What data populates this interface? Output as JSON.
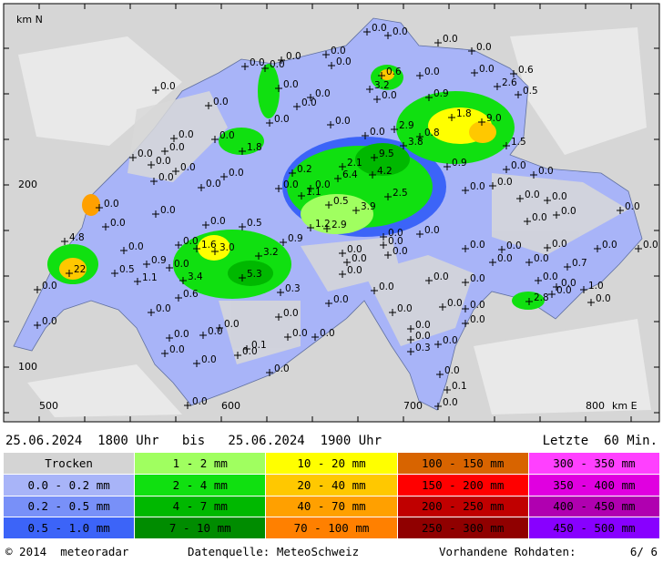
{
  "map": {
    "axis": {
      "y_title": "km N",
      "x_title": "km E",
      "y_labels": [
        "200",
        "100"
      ],
      "x_labels": [
        "500",
        "600",
        "700",
        "800"
      ]
    },
    "stations": [
      "0.0",
      "0.0",
      "0.0",
      "0.0",
      "0.0",
      "0.0",
      "0.0",
      "0.0",
      "0.0",
      "0.6",
      "0.0",
      "0.6",
      "0.0",
      "3.2",
      "2.6",
      "0.5",
      "0.0",
      "0.0",
      "0.0",
      "0.0",
      "0.9",
      "0.0",
      "0.0",
      "1.8",
      "9.0",
      "0.0",
      "0.0",
      "2.9",
      "0.8",
      "0.0",
      "0.0",
      "1.8",
      "0.0",
      "3.8",
      "1.5",
      "0.0",
      "9.5",
      "0.0",
      "0.0",
      "0.0",
      "0.2",
      "2.1",
      "4.2",
      "0.9",
      "0.0",
      "0.0",
      "0.0",
      "0.0",
      "0.0",
      "0.0",
      "6.4",
      "0.0",
      "0.0",
      "1.1",
      "2.5",
      "0.0",
      "0.0",
      "0.0",
      "0.0",
      "0.5",
      "3.9",
      "0.0",
      "1.2",
      "2.9",
      "0.0",
      "0.0",
      "0.0",
      "0.5",
      "0.0",
      "0.0",
      "0.0",
      "4.8",
      "0.0",
      "1.6",
      "3.0",
      "0.0",
      "0.0",
      "0.9",
      "3.2",
      "0.0",
      "0.0",
      "0.0",
      "0.0",
      "0.0",
      "0.0",
      "0.0",
      "0.0",
      "0.9",
      "0.0",
      "0.5",
      "22",
      "0.0",
      "0.0",
      "0.0",
      "0.7",
      "1.1",
      "3.4",
      "5.3",
      "0.0",
      "0.0",
      "0.0",
      "0.0",
      "0.0",
      "1.0",
      "0.0",
      "0.3",
      "0.0",
      "0.6",
      "2.8",
      "0.0",
      "0.0",
      "0.0",
      "0.0",
      "0.0",
      "0.0",
      "0.0",
      "0.0",
      "0.0",
      "0.0",
      "0.0",
      "0.0",
      "0.0",
      "0.0",
      "0.0",
      "0.0",
      "0.0",
      "0.0",
      "0.1",
      "0.0",
      "0.0",
      "0.3",
      "0.0",
      "0.0",
      "0.0",
      "0.1",
      "0.0",
      "0.0",
      "0.0"
    ]
  },
  "header": {
    "period": "25.06.2024  1800 Uhr   bis   25.06.2024  1900 Uhr",
    "window": "Letzte  60 Min."
  },
  "legend": {
    "rows": [
      [
        {
          "label": "Trocken",
          "color": "#d4d4d4"
        },
        {
          "label": "1 - 2 mm",
          "color": "#a0ff60"
        },
        {
          "label": "10 - 20 mm",
          "color": "#ffff00"
        },
        {
          "label": "100 - 150 mm",
          "color": "#d86400"
        },
        {
          "label": "300 - 350 mm",
          "color": "#ff40ff"
        }
      ],
      [
        {
          "label": "0.0 - 0.2 mm",
          "color": "#a8b4f8"
        },
        {
          "label": "2 - 4 mm",
          "color": "#10e010"
        },
        {
          "label": "20 - 40 mm",
          "color": "#ffc800"
        },
        {
          "label": "150 - 200 mm",
          "color": "#ff0000"
        },
        {
          "label": "350 - 400 mm",
          "color": "#e000e0"
        }
      ],
      [
        {
          "label": "0.2 - 0.5 mm",
          "color": "#7890f8"
        },
        {
          "label": "4 - 7 mm",
          "color": "#00b800"
        },
        {
          "label": "40 - 70 mm",
          "color": "#ffa000"
        },
        {
          "label": "200 - 250 mm",
          "color": "#c00000"
        },
        {
          "label": "400 - 450 mm",
          "color": "#b000b0"
        }
      ],
      [
        {
          "label": "0.5 - 1.0 mm",
          "color": "#3c64f8"
        },
        {
          "label": "7 - 10 mm",
          "color": "#008c00"
        },
        {
          "label": "70 - 100 mm",
          "color": "#ff8000"
        },
        {
          "label": "250 - 300 mm",
          "color": "#900000"
        },
        {
          "label": "450 - 500 mm",
          "color": "#8800ff"
        }
      ]
    ]
  },
  "footer": {
    "copyright": "© 2014  meteoradar",
    "source": "Datenquelle: MeteoSchweiz",
    "raw_label": "Vorhandene Rohdaten:",
    "raw_value": "6/ 6"
  }
}
